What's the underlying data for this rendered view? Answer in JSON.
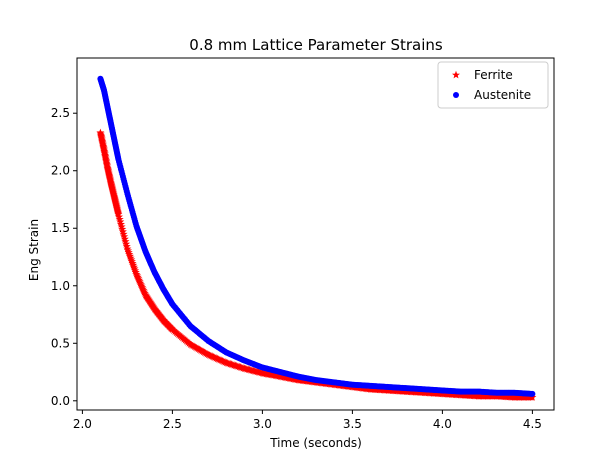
{
  "chart_data": {
    "type": "scatter",
    "title": "0.8 mm  Lattice Parameter Strains",
    "xlabel": "Time (seconds)",
    "ylabel": "Eng Strain",
    "xlim": [
      1.97,
      4.62
    ],
    "ylim": [
      -0.08,
      2.98
    ],
    "xticks": [
      "2.0",
      "2.5",
      "3.0",
      "3.5",
      "4.0",
      "4.5"
    ],
    "yticks": [
      "0.0",
      "0.5",
      "1.0",
      "1.5",
      "2.0",
      "2.5"
    ],
    "grid": false,
    "legend_position": "top-right",
    "series": [
      {
        "name": "Ferrite",
        "marker": "star",
        "color": "#ff0000",
        "x": [
          2.1,
          2.12,
          2.14,
          2.16,
          2.18,
          2.2,
          2.25,
          2.3,
          2.35,
          2.4,
          2.45,
          2.5,
          2.6,
          2.7,
          2.8,
          2.9,
          3.0,
          3.1,
          3.2,
          3.3,
          3.4,
          3.5,
          3.6,
          3.7,
          3.8,
          3.9,
          4.0,
          4.1,
          4.2,
          4.3,
          4.4,
          4.5
        ],
        "y": [
          2.33,
          2.18,
          2.02,
          1.88,
          1.75,
          1.62,
          1.32,
          1.1,
          0.92,
          0.8,
          0.7,
          0.62,
          0.49,
          0.4,
          0.33,
          0.28,
          0.24,
          0.21,
          0.18,
          0.16,
          0.14,
          0.12,
          0.1,
          0.09,
          0.08,
          0.07,
          0.06,
          0.05,
          0.04,
          0.04,
          0.03,
          0.03
        ]
      },
      {
        "name": "Austenite",
        "marker": "circle",
        "color": "#0000ff",
        "x": [
          2.1,
          2.12,
          2.14,
          2.16,
          2.18,
          2.2,
          2.25,
          2.3,
          2.35,
          2.4,
          2.45,
          2.5,
          2.6,
          2.7,
          2.8,
          2.9,
          3.0,
          3.1,
          3.2,
          3.3,
          3.4,
          3.5,
          3.6,
          3.7,
          3.8,
          3.9,
          4.0,
          4.1,
          4.2,
          4.3,
          4.4,
          4.5
        ],
        "y": [
          2.8,
          2.7,
          2.55,
          2.4,
          2.25,
          2.1,
          1.8,
          1.52,
          1.3,
          1.12,
          0.97,
          0.84,
          0.65,
          0.52,
          0.42,
          0.35,
          0.29,
          0.25,
          0.21,
          0.18,
          0.16,
          0.14,
          0.13,
          0.12,
          0.11,
          0.1,
          0.09,
          0.08,
          0.08,
          0.07,
          0.07,
          0.06
        ]
      }
    ]
  }
}
